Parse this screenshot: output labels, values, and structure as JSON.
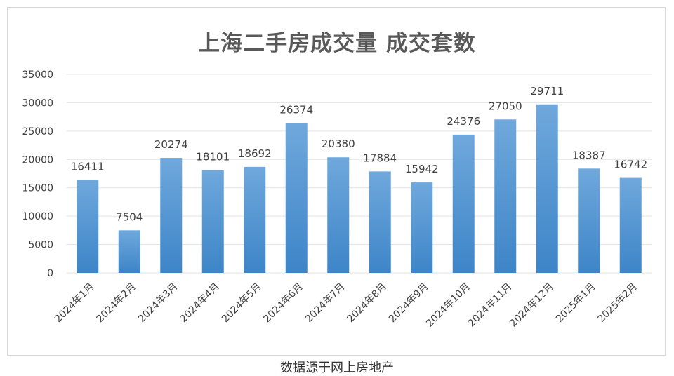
{
  "chart_data": {
    "type": "bar",
    "title": "上海二手房成交量 成交套数",
    "categories": [
      "2024年1月",
      "2024年2月",
      "2024年3月",
      "2024年4月",
      "2024年5月",
      "2024年6月",
      "2024年7月",
      "2024年8月",
      "2024年9月",
      "2024年10月",
      "2024年11月",
      "2024年12月",
      "2025年1月",
      "2025年2月"
    ],
    "values": [
      16411,
      7504,
      20274,
      18101,
      18692,
      26374,
      20380,
      17884,
      15942,
      24376,
      27050,
      29711,
      18387,
      16742
    ],
    "data_labels": [
      "16411",
      "7504",
      "20274",
      "18101",
      "18692",
      "26374",
      "20380",
      "17884",
      "15942",
      "24376",
      "27050",
      "29711",
      "18387",
      "16742"
    ],
    "yticks": [
      "0",
      "5000",
      "10000",
      "15000",
      "20000",
      "25000",
      "30000",
      "35000"
    ],
    "ylim": [
      0,
      35000
    ],
    "grid": true,
    "legend": "none",
    "bar_color_top": "#6fa8dc",
    "bar_color_bottom": "#3d85c8",
    "grid_color": "#e3e3e3",
    "label_color": "#404040",
    "source_note": "数据源于网上房地产"
  }
}
